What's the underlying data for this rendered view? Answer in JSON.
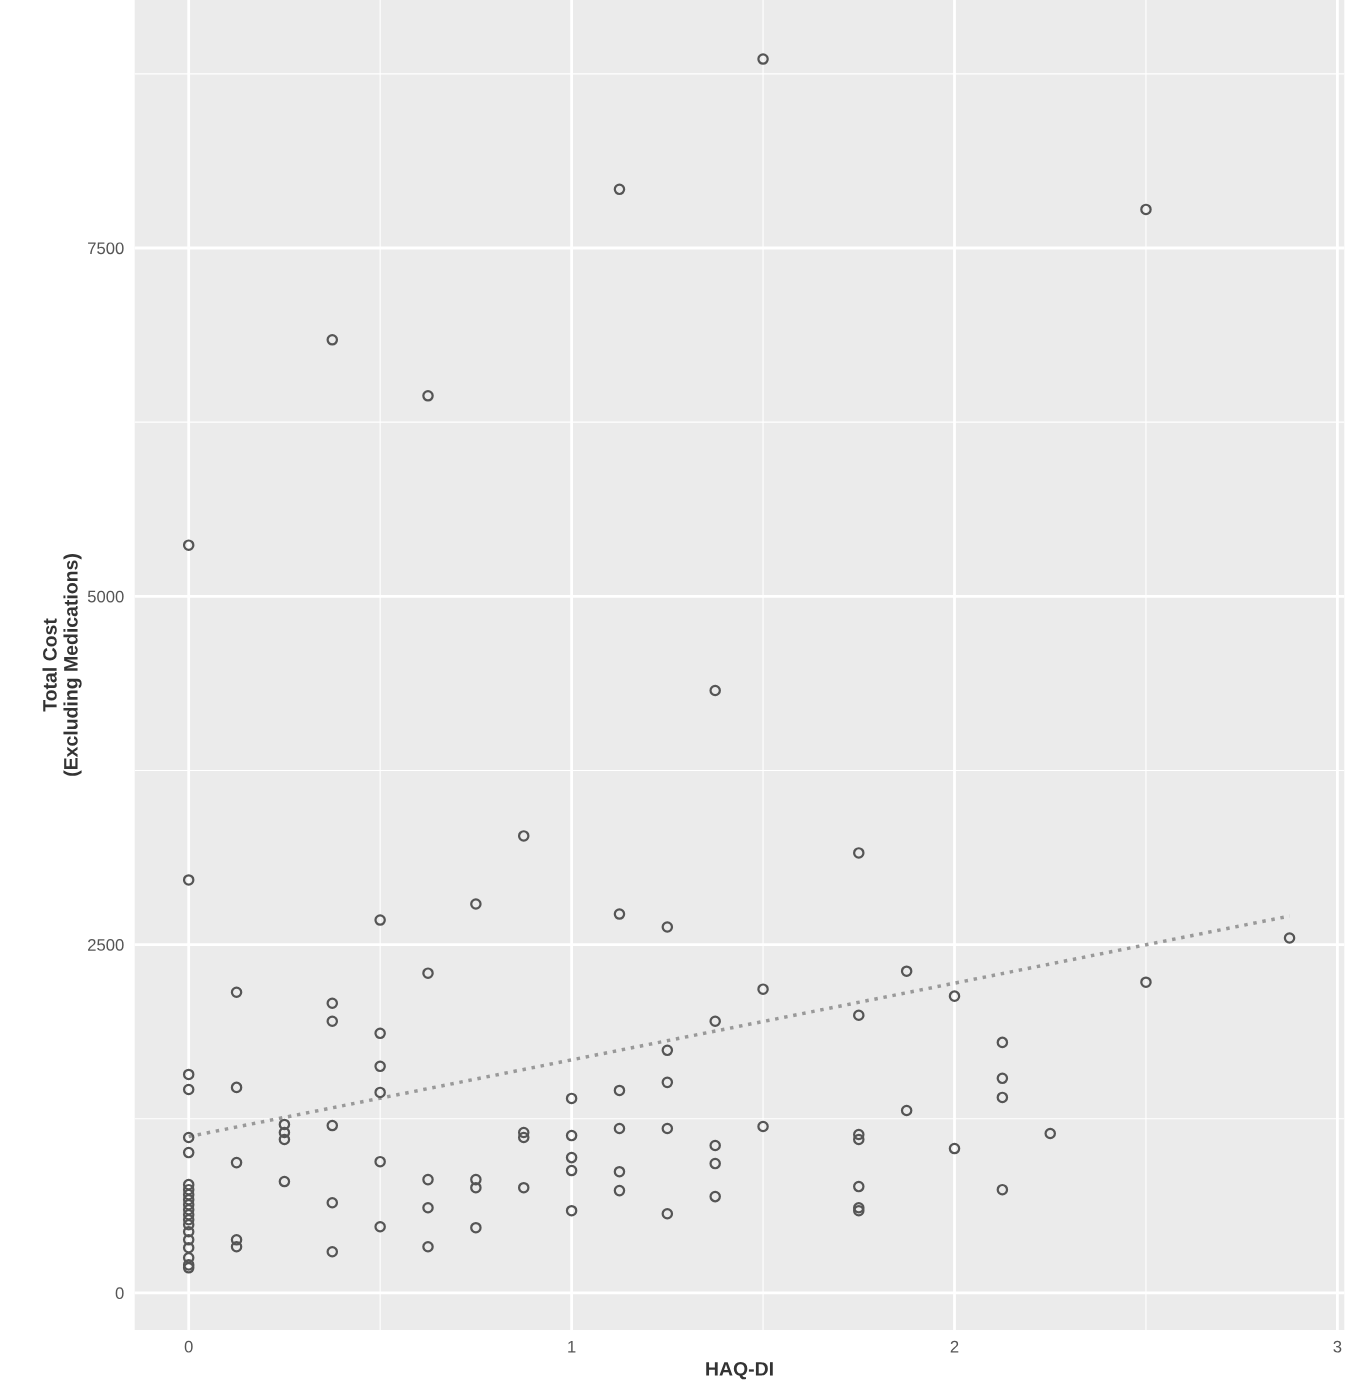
{
  "chart_data": {
    "type": "scatter",
    "xlabel": "HAQ-DI",
    "ylabel": "Total Cost\n(Excluding Medications)",
    "xlim": [
      -0.141,
      3.018
    ],
    "ylim": [
      -266,
      9280
    ],
    "xticks": [
      0,
      1,
      2,
      3
    ],
    "yticks": [
      0,
      2500,
      5000,
      7500
    ],
    "grid": true,
    "series": [
      {
        "marker": "circle",
        "color": "#555555",
        "x": [
          0,
          0,
          0,
          0,
          0,
          0,
          0,
          0,
          0,
          0,
          0,
          0,
          0,
          0,
          0,
          0,
          0,
          0,
          0,
          0,
          0,
          0.125,
          0.125,
          0.125,
          0.125,
          0.125,
          0.25,
          0.25,
          0.25,
          0.25,
          0.375,
          0.375,
          0.375,
          0.375,
          0.375,
          0.375,
          0.5,
          0.5,
          0.5,
          0.5,
          0.5,
          0.5,
          0.625,
          0.625,
          0.625,
          0.625,
          0.625,
          0.75,
          0.75,
          0.75,
          0.75,
          0.875,
          0.875,
          0.875,
          0.875,
          1,
          1,
          1,
          1,
          1,
          1.125,
          1.125,
          1.125,
          1.125,
          1.125,
          1.125,
          1.25,
          1.25,
          1.25,
          1.25,
          1.25,
          1.375,
          1.375,
          1.375,
          1.375,
          1.375,
          1.5,
          1.5,
          1.5,
          1.75,
          1.75,
          1.75,
          1.75,
          1.75,
          1.75,
          1.75,
          1.875,
          1.875,
          2,
          2,
          2.125,
          2.125,
          2.125,
          2.125,
          2.25,
          2.5,
          2.5,
          2.875
        ],
        "values": [
          5367,
          2964,
          1568,
          1460,
          1115,
          1007,
          777,
          741,
          705,
          669,
          633,
          597,
          561,
          525,
          489,
          439,
          381,
          324,
          252,
          201,
          180,
          2158,
          1475,
          935,
          381,
          331,
          1209,
          1151,
          1101,
          799,
          6841,
          2079,
          1950,
          1201,
          647,
          295,
          2676,
          1863,
          1626,
          1439,
          942,
          475,
          6439,
          2295,
          813,
          611,
          331,
          2791,
          813,
          755,
          468,
          3280,
          1151,
          1115,
          755,
          1396,
          1129,
          971,
          878,
          590,
          7921,
          2719,
          1453,
          1180,
          870,
          734,
          2626,
          1741,
          1511,
          1180,
          568,
          4324,
          1950,
          1058,
          928,
          691,
          8856,
          2180,
          1194,
          3158,
          1993,
          1137,
          1101,
          763,
          611,
          590,
          2309,
          1309,
          2130,
          1036,
          1798,
          1540,
          1403,
          741,
          1144,
          7777,
          2230,
          2547
        ]
      },
      {
        "type": "line",
        "color": "#999999",
        "line_style": "dotted",
        "x": [
          0,
          2.875
        ],
        "values": [
          1122,
          2705
        ]
      }
    ]
  }
}
